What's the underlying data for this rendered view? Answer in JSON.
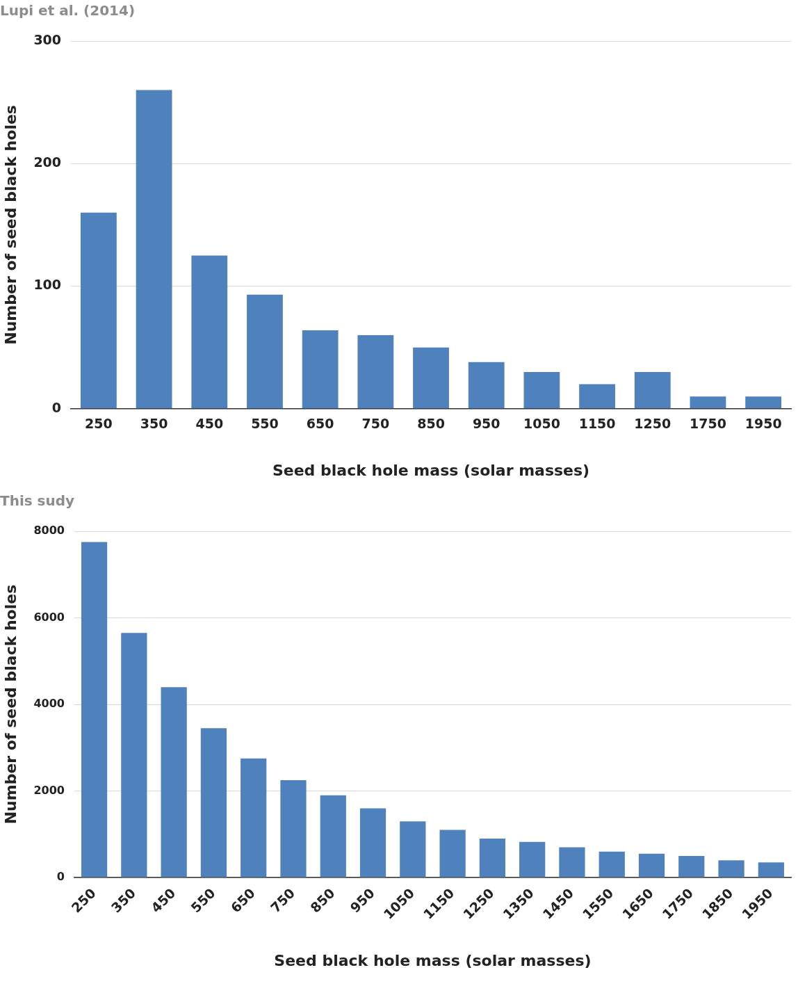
{
  "chart_data": [
    {
      "type": "bar",
      "title": "Lupi et al. (2014)",
      "xlabel": "Seed black hole mass (solar masses)",
      "ylabel": "Number of seed black holes",
      "categories": [
        "250",
        "350",
        "450",
        "550",
        "650",
        "750",
        "850",
        "950",
        "1050",
        "1150",
        "1250",
        "1750",
        "1950"
      ],
      "values": [
        160,
        260,
        125,
        93,
        64,
        60,
        50,
        38,
        30,
        20,
        30,
        10,
        10
      ],
      "color": "#4f81bd",
      "ylim": [
        0,
        300
      ],
      "yticks": [
        0,
        100,
        200,
        300
      ],
      "grid": "y",
      "legend": false
    },
    {
      "type": "bar",
      "title": "This sudy",
      "xlabel": "Seed black hole mass (solar masses)",
      "ylabel": "Number of seed black holes",
      "categories": [
        "250",
        "350",
        "450",
        "550",
        "650",
        "750",
        "850",
        "950",
        "1050",
        "1150",
        "1250",
        "1350",
        "1450",
        "1550",
        "1650",
        "1750",
        "1850",
        "1950"
      ],
      "values": [
        7750,
        5650,
        4400,
        3450,
        2750,
        2250,
        1900,
        1600,
        1300,
        1100,
        900,
        825,
        700,
        600,
        550,
        500,
        400,
        350
      ],
      "color": "#4f81bd",
      "ylim": [
        0,
        8000
      ],
      "yticks": [
        0,
        2000,
        4000,
        6000,
        8000
      ],
      "grid": "y",
      "legend": false
    }
  ]
}
